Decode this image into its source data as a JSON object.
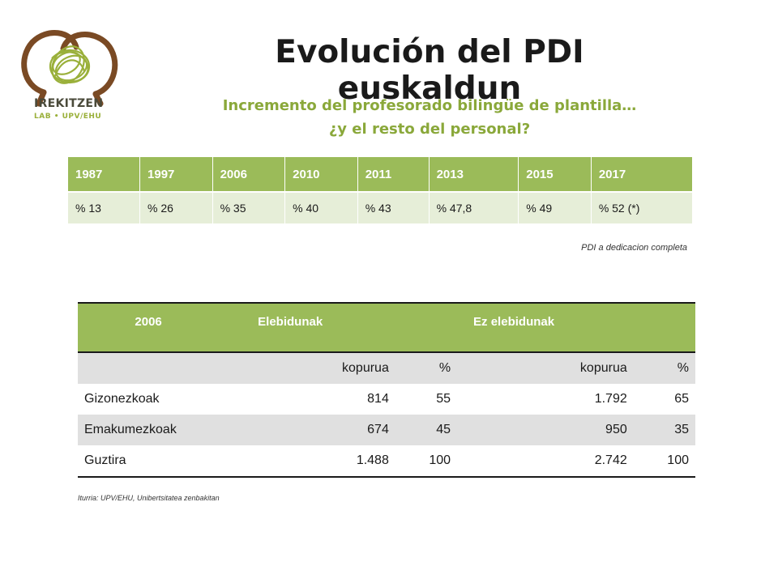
{
  "logo": {
    "name": "irekitzen-logo",
    "line1": "IREKITZEN",
    "line2": "LAB • UPV/EHU",
    "colors": {
      "brown": "#7a4a24",
      "green": "#9ab03a"
    }
  },
  "title": "Evolución del PDI euskaldun",
  "subtitle": {
    "line1": "Incremento del profesorado  bilingüe de plantilla…",
    "line2": "¿y el resto  del personal?"
  },
  "evolution_table": {
    "years": [
      "1987",
      "1997",
      "2006",
      "2010",
      "2011",
      "2013",
      "2015",
      "2017"
    ],
    "values": [
      "% 13",
      "% 26",
      "% 35",
      "% 40",
      "% 43",
      "% 47,8",
      "% 49",
      "% 52 (*)"
    ]
  },
  "note": "PDI a dedicacion completa",
  "staff_table": {
    "header": {
      "year": "2006",
      "group1": "Elebidunak",
      "group2": "Ez elebidunak"
    },
    "subheader": {
      "col1": "kopurua",
      "col2": "%",
      "col3": "kopurua",
      "col4": "%"
    },
    "rows": [
      {
        "label": "Gizonezkoak",
        "count1": "814",
        "pct1": "55",
        "count2": "1.792",
        "pct2": "65"
      },
      {
        "label": "Emakumezkoak",
        "count1": "674",
        "pct1": "45",
        "count2": "950",
        "pct2": "35"
      },
      {
        "label": "Guztira",
        "count1": "1.488",
        "pct1": "100",
        "count2": "2.742",
        "pct2": "100"
      }
    ]
  },
  "source": "Iturria: UPV/EHU, Unibertsitatea zenbakitan",
  "colors": {
    "accent": "#9bbb59",
    "subtitle": "#8aa83a",
    "row_fill": "#e6eed8",
    "shade": "#e0e0e0"
  }
}
